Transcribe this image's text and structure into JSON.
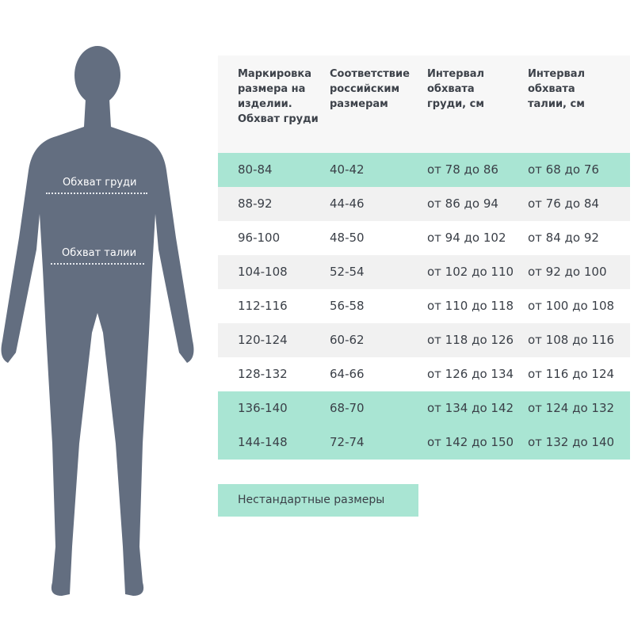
{
  "figure": {
    "chest_label": "Обхват груди",
    "waist_label": "Обхват талии",
    "silhouette_color": "#636e80"
  },
  "table": {
    "headers": [
      "Маркировка размера на изделии. Обхват груди",
      "Соответствие российским размерам",
      "Интервал обхвата груди, см",
      "Интервал обхвата талии, см"
    ],
    "rows": [
      {
        "mark": "80-84",
        "ru": "40-42",
        "chest": "от 78 до 86",
        "waist": "от 68 до 76",
        "highlight": true
      },
      {
        "mark": "88-92",
        "ru": "44-46",
        "chest": "от 86 до 94",
        "waist": "от 76 до 84",
        "highlight": false
      },
      {
        "mark": "96-100",
        "ru": "48-50",
        "chest": "от 94 до 102",
        "waist": "от 84 до 92",
        "highlight": false
      },
      {
        "mark": "104-108",
        "ru": "52-54",
        "chest": "от 102 до 110",
        "waist": "от 92 до 100",
        "highlight": false
      },
      {
        "mark": "112-116",
        "ru": "56-58",
        "chest": "от 110 до 118",
        "waist": "от 100 до 108",
        "highlight": false
      },
      {
        "mark": "120-124",
        "ru": "60-62",
        "chest": "от 118 до 126",
        "waist": "от 108 до 116",
        "highlight": false
      },
      {
        "mark": "128-132",
        "ru": "64-66",
        "chest": "от 126 до 134",
        "waist": "от 116 до 124",
        "highlight": false
      },
      {
        "mark": "136-140",
        "ru": "68-70",
        "chest": "от 134 до 142",
        "waist": "от 124 до 132",
        "highlight": true
      },
      {
        "mark": "144-148",
        "ru": "72-74",
        "chest": "от 142 до 150",
        "waist": "от 132 до 140",
        "highlight": true
      }
    ],
    "highlight_color": "#a9e5d3"
  },
  "nonstandard_label": "Нестандартные размеры"
}
